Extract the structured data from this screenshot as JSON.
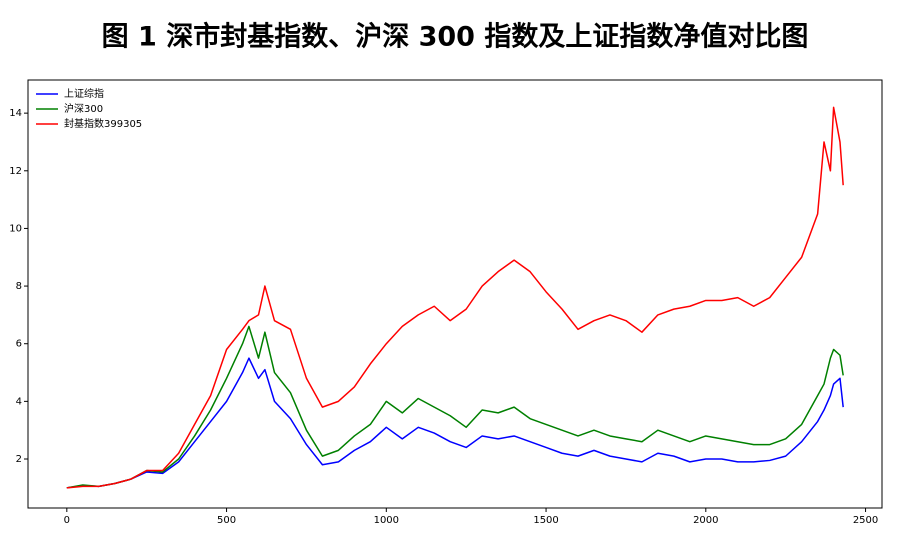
{
  "chart_data": {
    "type": "line",
    "title": "图 1 深市封基指数、沪深 300 指数及上证指数净值对比图",
    "x": [
      0,
      50,
      100,
      150,
      200,
      250,
      300,
      350,
      400,
      450,
      500,
      550,
      570,
      600,
      620,
      650,
      700,
      750,
      800,
      850,
      900,
      950,
      1000,
      1050,
      1100,
      1150,
      1200,
      1250,
      1300,
      1350,
      1400,
      1450,
      1500,
      1550,
      1600,
      1650,
      1700,
      1750,
      1800,
      1850,
      1900,
      1950,
      2000,
      2050,
      2100,
      2150,
      2200,
      2250,
      2300,
      2350,
      2370,
      2390,
      2400,
      2420,
      2430
    ],
    "series": [
      {
        "name": "上证综指",
        "color": "#0000ff",
        "values": [
          1.0,
          1.08,
          1.05,
          1.15,
          1.3,
          1.55,
          1.5,
          1.9,
          2.6,
          3.3,
          4.0,
          5.0,
          5.5,
          4.8,
          5.1,
          4.0,
          3.4,
          2.5,
          1.8,
          1.9,
          2.3,
          2.6,
          3.1,
          2.7,
          3.1,
          2.9,
          2.6,
          2.4,
          2.8,
          2.7,
          2.8,
          2.6,
          2.4,
          2.2,
          2.1,
          2.3,
          2.1,
          2.0,
          1.9,
          2.2,
          2.1,
          1.9,
          2.0,
          2.0,
          1.9,
          1.9,
          1.95,
          2.1,
          2.6,
          3.3,
          3.7,
          4.2,
          4.6,
          4.8,
          3.8
        ]
      },
      {
        "name": "沪深300",
        "color": "#008000",
        "values": [
          1.0,
          1.1,
          1.05,
          1.15,
          1.3,
          1.6,
          1.55,
          2.0,
          2.8,
          3.7,
          4.8,
          6.0,
          6.6,
          5.5,
          6.4,
          5.0,
          4.3,
          3.0,
          2.1,
          2.3,
          2.8,
          3.2,
          4.0,
          3.6,
          4.1,
          3.8,
          3.5,
          3.1,
          3.7,
          3.6,
          3.8,
          3.4,
          3.2,
          3.0,
          2.8,
          3.0,
          2.8,
          2.7,
          2.6,
          3.0,
          2.8,
          2.6,
          2.8,
          2.7,
          2.6,
          2.5,
          2.5,
          2.7,
          3.2,
          4.2,
          4.6,
          5.5,
          5.8,
          5.6,
          4.9
        ]
      },
      {
        "name": "封基指数399305",
        "color": "#ff0000",
        "values": [
          1.0,
          1.05,
          1.05,
          1.15,
          1.3,
          1.6,
          1.6,
          2.2,
          3.2,
          4.2,
          5.8,
          6.5,
          6.8,
          7.0,
          8.0,
          6.8,
          6.5,
          4.8,
          3.8,
          4.0,
          4.5,
          5.3,
          6.0,
          6.6,
          7.0,
          7.3,
          6.8,
          7.2,
          8.0,
          8.5,
          8.9,
          8.5,
          7.8,
          7.2,
          6.5,
          6.8,
          7.0,
          6.8,
          6.4,
          7.0,
          7.2,
          7.3,
          7.5,
          7.5,
          7.6,
          7.3,
          7.6,
          8.3,
          9.0,
          10.5,
          13.0,
          12.0,
          14.2,
          13.0,
          11.5
        ]
      }
    ],
    "xlim": [
      -121.5,
      2551.5
    ],
    "xticks": [
      0,
      500,
      1000,
      1500,
      2000,
      2500
    ],
    "ylim": [
      0.3,
      15.15
    ],
    "yticks": [
      2,
      4,
      6,
      8,
      10,
      12,
      14
    ],
    "legend": "upper left"
  }
}
